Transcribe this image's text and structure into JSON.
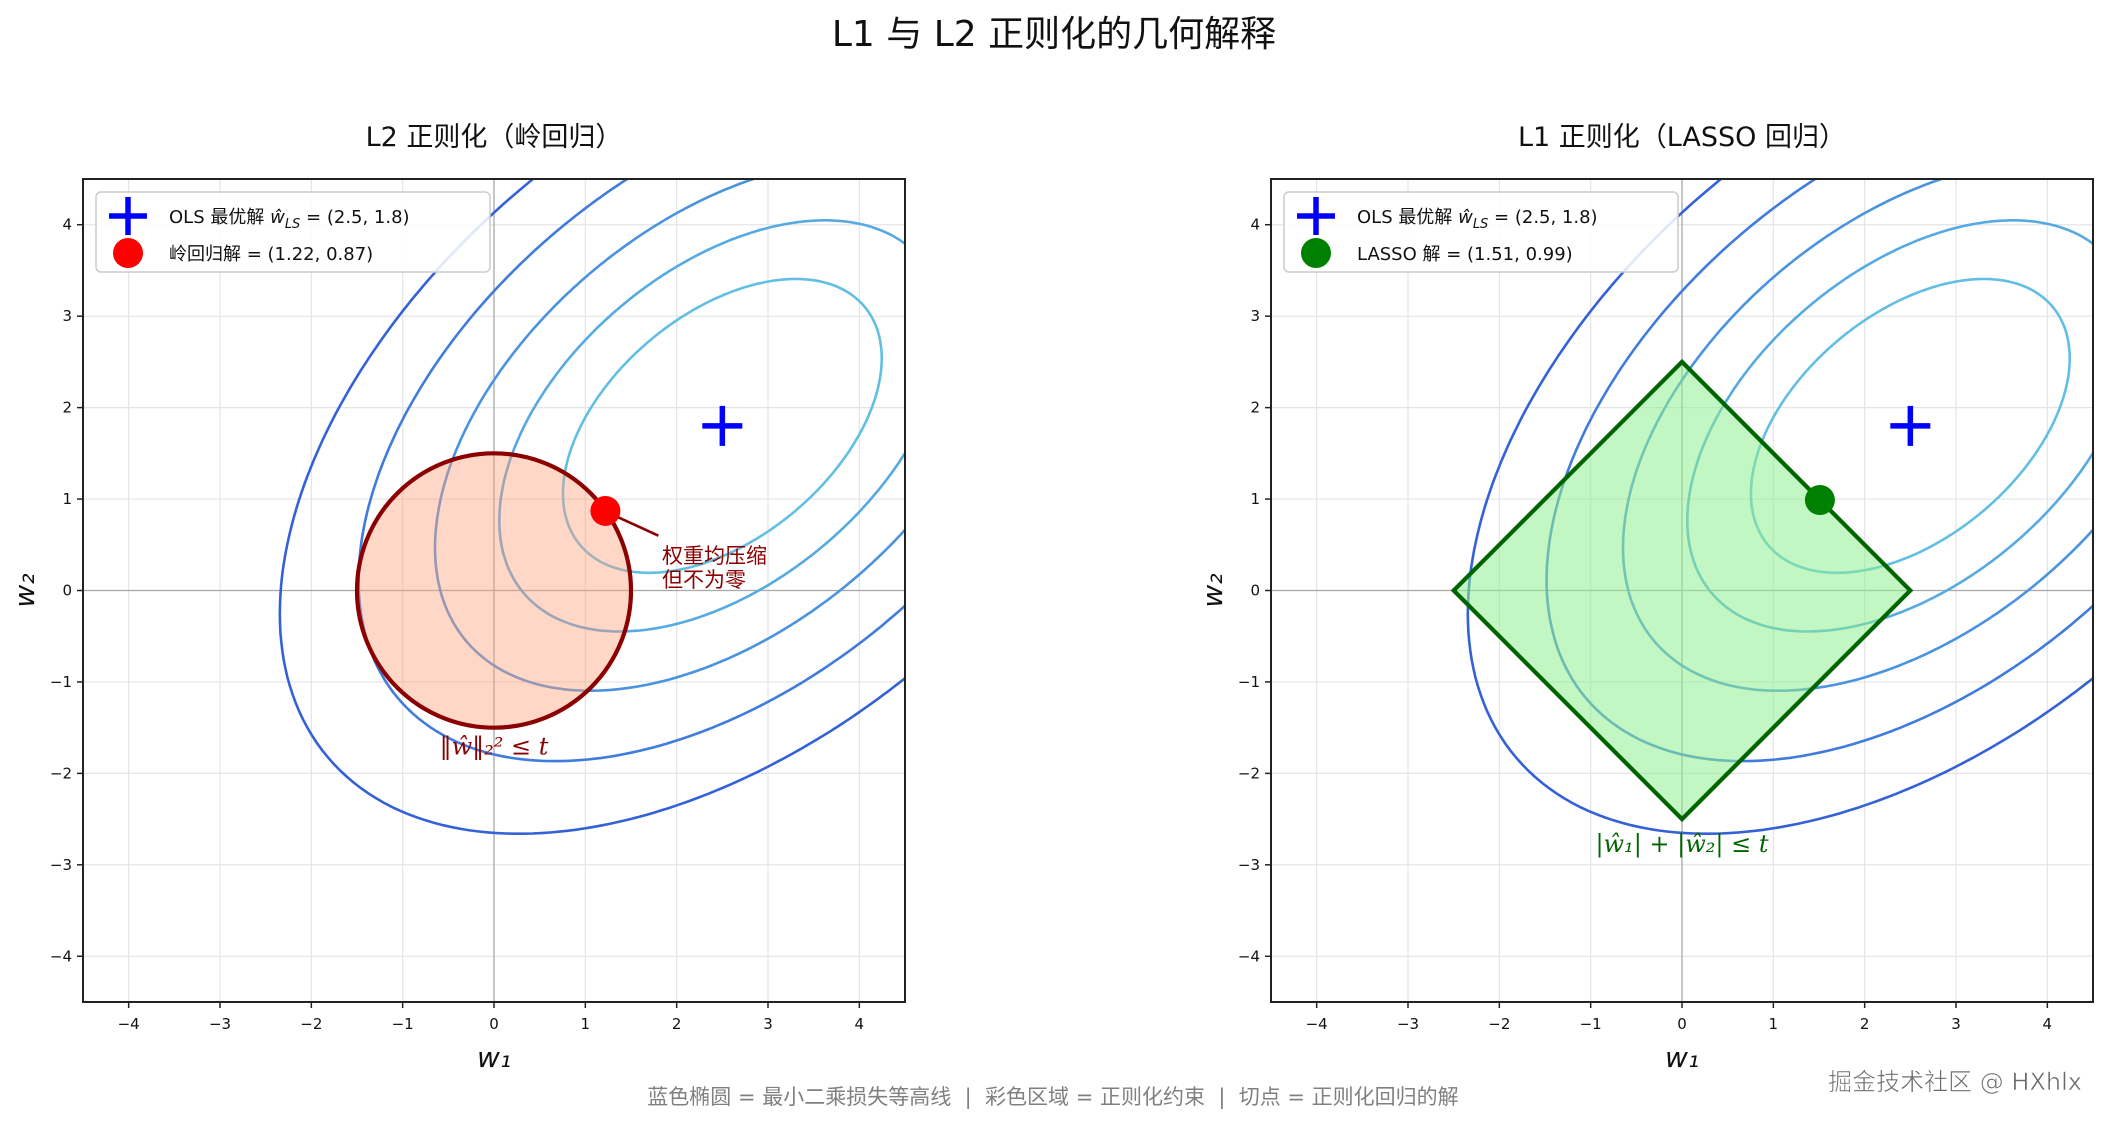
{
  "title": "L1 与 L2 正则化的几何解释",
  "footer": "蓝色椭圆 = 最小二乘损失等高线  |  彩色区域 = 正则化约束  |  切点 = 正则化回归的解",
  "watermark": "掘金技术社区 @ HXhlx",
  "chart_data": [
    {
      "type": "contour",
      "title": "L2 正则化（岭回归）",
      "xlabel": "w₁",
      "ylabel": "w₂",
      "xlim": [
        -4.5,
        4.5
      ],
      "ylim": [
        -4.5,
        4.5
      ],
      "xticks": [
        -4,
        -3,
        -2,
        -1,
        0,
        1,
        2,
        3,
        4
      ],
      "yticks": [
        -4,
        -3,
        -2,
        -1,
        0,
        1,
        2,
        3,
        4
      ],
      "grid": true,
      "legend_position": "upper-left",
      "contours": {
        "center": [
          2.5,
          1.8
        ],
        "matrix": [
          [
            1,
            -0.5
          ],
          [
            -0.5,
            1.18
          ]
        ],
        "levels": [
          2.4,
          4.7,
          7.8,
          12.5,
          18.5
        ],
        "colors": [
          "#62bfe3",
          "#56aae2",
          "#4a93df",
          "#3f7cdb",
          "#3462d6"
        ]
      },
      "ols": {
        "x": 2.5,
        "y": 1.8,
        "color": "#0000ff",
        "label_prefix": "OLS 最优解",
        "label_symbol": "ŵ",
        "label_sub": "LS",
        "label_suffix": "= (2.5, 1.8)"
      },
      "solution": {
        "x": 1.22,
        "y": 0.87,
        "color": "#ff0000",
        "label": "岭回归解 = (1.22, 0.87)"
      },
      "constraint": {
        "shape": "circle",
        "t": 1.5,
        "fill": "#ffa07a",
        "edge": "#8b0000",
        "label": "‖ŵ‖₂² ≤ t"
      },
      "annotation": [
        "权重均压缩",
        "但不为零"
      ]
    },
    {
      "type": "contour",
      "title": "L1 正则化（LASSO 回归）",
      "xlabel": "w₁",
      "ylabel": "w₂",
      "xlim": [
        -4.5,
        4.5
      ],
      "ylim": [
        -4.5,
        4.5
      ],
      "xticks": [
        -4,
        -3,
        -2,
        -1,
        0,
        1,
        2,
        3,
        4
      ],
      "yticks": [
        -4,
        -3,
        -2,
        -1,
        0,
        1,
        2,
        3,
        4
      ],
      "grid": true,
      "legend_position": "upper-left",
      "contours": {
        "center": [
          2.5,
          1.8
        ],
        "matrix": [
          [
            1,
            -0.5
          ],
          [
            -0.5,
            1.18
          ]
        ],
        "levels": [
          2.4,
          4.7,
          7.8,
          12.5,
          18.5
        ],
        "colors": [
          "#62bfe3",
          "#56aae2",
          "#4a93df",
          "#3f7cdb",
          "#3462d6"
        ]
      },
      "ols": {
        "x": 2.5,
        "y": 1.8,
        "color": "#0000ff",
        "label_prefix": "OLS 最优解",
        "label_symbol": "ŵ",
        "label_sub": "LS",
        "label_suffix": "= (2.5, 1.8)"
      },
      "solution": {
        "x": 1.51,
        "y": 0.99,
        "color": "#008000",
        "label": "LASSO 解 = (1.51, 0.99)"
      },
      "constraint": {
        "shape": "diamond",
        "t": 2.5,
        "fill": "#90ee90",
        "edge": "#006400",
        "label": "|ŵ₁| + |ŵ₂| ≤ t"
      }
    }
  ]
}
